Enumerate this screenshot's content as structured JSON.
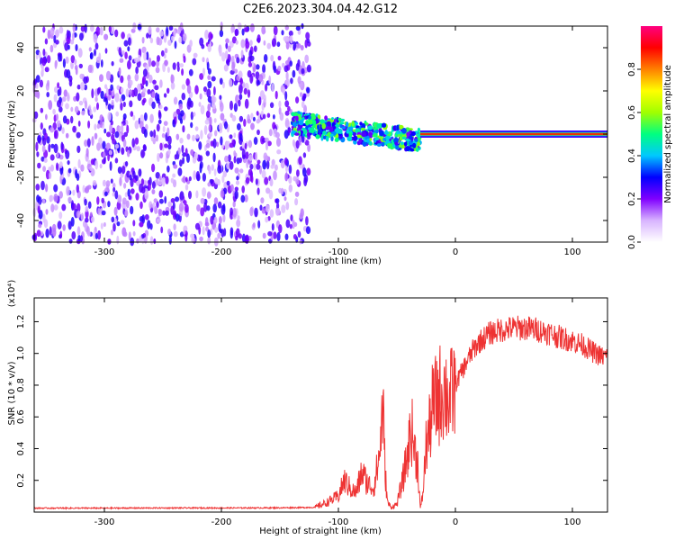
{
  "title": "C2E6.2023.304.04.42.G12",
  "chart_data": [
    {
      "type": "heatmap",
      "xlabel": "Height of straight line (km)",
      "ylabel": "Frequency (Hz)",
      "xlim": [
        -360,
        130
      ],
      "ylim": [
        -50,
        50
      ],
      "xticks": [
        -300,
        -200,
        -100,
        0,
        100
      ],
      "xtick_labels": [
        "-300",
        "-200",
        "-100",
        "0",
        "100"
      ],
      "yticks": [
        -40,
        -20,
        0,
        20,
        40
      ],
      "ytick_labels": [
        "-40",
        "-20",
        "0",
        "20",
        "40"
      ],
      "colorbar": {
        "label": "Normalized spectral amplitude",
        "range": [
          0,
          1
        ],
        "ticks": [
          0.0,
          0.2,
          0.4,
          0.6,
          0.8
        ],
        "tick_labels": [
          "0.0",
          "0.2",
          "0.4",
          "0.6",
          "0.8"
        ],
        "colormap": [
          "#ffffff",
          "#d8b4ff",
          "#8000ff",
          "#0000ff",
          "#00c8ff",
          "#00ff80",
          "#a0ff00",
          "#ffff00",
          "#ff8000",
          "#ff0000",
          "#ff0080"
        ]
      },
      "regions": [
        {
          "x": [
            -360,
            -125
          ],
          "y": [
            -50,
            50
          ],
          "amplitude": 0.2,
          "pattern": "noise"
        },
        {
          "x": [
            -140,
            -30
          ],
          "y": [
            -20,
            10
          ],
          "amplitude": 0.5,
          "pattern": "diffuse echo"
        },
        {
          "x": [
            -30,
            130
          ],
          "y": [
            -1,
            1
          ],
          "amplitude": 0.9,
          "pattern": "line at 0 Hz"
        }
      ],
      "grid": false
    },
    {
      "type": "line",
      "xlabel": "Height of straight line (km)",
      "ylabel": "SNR (10 * v/v)",
      "y_multiplier": "(x10⁴)",
      "xlim": [
        -360,
        130
      ],
      "ylim": [
        0,
        13500
      ],
      "xticks": [
        -300,
        -200,
        -100,
        0,
        100
      ],
      "xtick_labels": [
        "-300",
        "-200",
        "-100",
        "0",
        "100"
      ],
      "yticks": [
        2000,
        4000,
        6000,
        8000,
        10000,
        12000
      ],
      "ytick_labels": [
        "0.2",
        "0.4",
        "0.6",
        "0.8",
        "1.0",
        "1.2"
      ],
      "series": [
        {
          "color": "#ee3333",
          "x": [
            -360,
            -300,
            -250,
            -200,
            -150,
            -120,
            -110,
            -100,
            -95,
            -90,
            -85,
            -80,
            -75,
            -70,
            -65,
            -62,
            -60,
            -58,
            -55,
            -50,
            -45,
            -40,
            -38,
            -35,
            -32,
            -30,
            -28,
            -25,
            -22,
            -20,
            -15,
            -10,
            -5,
            0,
            5,
            10,
            15,
            20,
            25,
            30,
            40,
            50,
            60,
            70,
            80,
            90,
            100,
            110,
            115,
            120,
            125,
            130
          ],
          "y": [
            250,
            250,
            260,
            260,
            270,
            300,
            600,
            1000,
            2000,
            1500,
            1200,
            2500,
            1800,
            1500,
            3500,
            6800,
            2500,
            600,
            300,
            500,
            2000,
            4000,
            5500,
            4000,
            3000,
            200,
            1000,
            4200,
            5200,
            6500,
            7200,
            7800,
            7000,
            8000,
            8800,
            9500,
            10200,
            10700,
            11000,
            11300,
            11500,
            11600,
            11600,
            11500,
            11300,
            11000,
            10800,
            10500,
            10200,
            10000,
            9800,
            9800
          ]
        }
      ],
      "grid": false
    }
  ]
}
